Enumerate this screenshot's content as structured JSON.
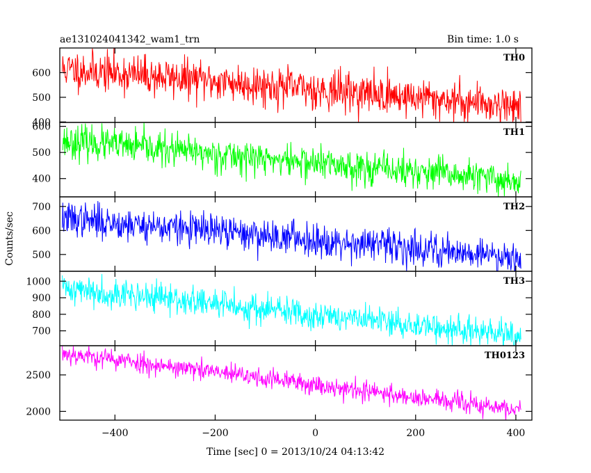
{
  "header": {
    "title": "ae131024041342_wam1_trn",
    "bin_time": "Bin time: 1.0 s"
  },
  "axes": {
    "ylabel": "Counts/sec",
    "xlabel": "Time [sec] 0 = 2013/10/24 04:13:42"
  },
  "chart_data": {
    "type": "line",
    "shared_x": {
      "label": "Time [sec] 0 = 2013/10/24 04:13:42",
      "xlim": [
        -510,
        432
      ],
      "ticks": [
        -400,
        -200,
        0,
        200,
        400
      ],
      "tick_labels": [
        "−400",
        "−200",
        "0",
        "200",
        "400"
      ]
    },
    "ylabel": "Counts/sec",
    "bin_time_s": 1.0,
    "series": [
      {
        "name": "TH0",
        "color": "#ff0000",
        "ylim": [
          398,
          700
        ],
        "yticks": [
          400,
          500,
          600
        ],
        "x_range": [
          -505,
          410
        ],
        "start": 615,
        "end": 465,
        "noise": 40,
        "seed": 11
      },
      {
        "name": "TH1",
        "color": "#00ff00",
        "ylim": [
          330,
          615
        ],
        "yticks": [
          400,
          500,
          600
        ],
        "x_range": [
          -505,
          410
        ],
        "start": 545,
        "end": 390,
        "noise": 32,
        "seed": 23
      },
      {
        "name": "TH2",
        "color": "#0000ff",
        "ylim": [
          430,
          740
        ],
        "yticks": [
          500,
          600,
          700
        ],
        "x_range": [
          -505,
          410
        ],
        "start": 650,
        "end": 490,
        "noise": 35,
        "seed": 37
      },
      {
        "name": "TH3",
        "color": "#00ffff",
        "ylim": [
          610,
          1060
        ],
        "yticks": [
          700,
          800,
          900,
          1000
        ],
        "x_range": [
          -505,
          410
        ],
        "start": 960,
        "end": 665,
        "noise": 45,
        "seed": 41
      },
      {
        "name": "TH0123",
        "color": "#ff00ff",
        "ylim": [
          1880,
          2900
        ],
        "yticks": [
          2000,
          2500
        ],
        "x_range": [
          -505,
          410
        ],
        "start": 2800,
        "end": 2010,
        "noise": 70,
        "seed": 53
      }
    ]
  }
}
